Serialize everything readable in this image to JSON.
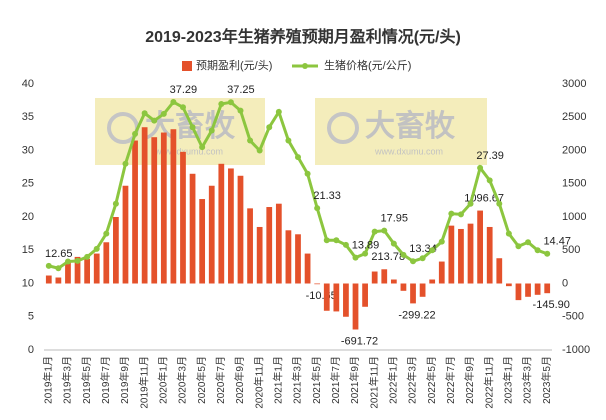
{
  "chart_data": {
    "type": "combo",
    "title": "2019-2023年生猪养殖预期月盈利情况(元/头)",
    "watermark": {
      "text": "大畜牧",
      "url": "www.dxumu.com"
    },
    "legend": "top",
    "grid": false,
    "categories": [
      "2019年1月",
      null,
      "2019年3月",
      null,
      "2019年5月",
      null,
      "2019年7月",
      null,
      "2019年9月",
      null,
      "2019年11月",
      null,
      "2020年1月",
      null,
      "2020年3月",
      null,
      "2020年5月",
      null,
      "2020年7月",
      null,
      "2020年9月",
      null,
      "2020年11月",
      null,
      "2021年1月",
      null,
      "2021年3月",
      null,
      "2021年5月",
      null,
      "2021年7月",
      null,
      "2021年9月",
      null,
      "2021年11月",
      null,
      "2022年1月",
      null,
      "2022年3月",
      null,
      "2022年5月",
      null,
      "2022年7月",
      null,
      "2022年9月",
      null,
      "2022年11月",
      null,
      "2023年1月",
      null,
      "2023年3月",
      null,
      "2023年5月"
    ],
    "ylim": [
      0,
      40
    ],
    "yticks": [
      0,
      5,
      10,
      15,
      20,
      25,
      30,
      35,
      40
    ],
    "y2lim": [
      -1000,
      3000
    ],
    "y2ticks": [
      -1000,
      -500,
      0,
      500,
      1000,
      1500,
      2000,
      2500,
      3000
    ],
    "series": [
      {
        "name": "预期盈利(元/头)",
        "type": "bar",
        "axis": "y2",
        "color": "#e4512b",
        "values": [
          120,
          90,
          320,
          400,
          370,
          450,
          620,
          1000,
          1470,
          2150,
          2350,
          2200,
          2270,
          2320,
          1980,
          1650,
          1270,
          1470,
          1800,
          1730,
          1620,
          1130,
          850,
          1150,
          1200,
          800,
          740,
          450,
          -10.65,
          -410,
          -420,
          -500,
          -691.72,
          -350,
          180,
          213.78,
          60,
          -110,
          -299.22,
          -200,
          60,
          330,
          870,
          820,
          900,
          1096.67,
          850,
          380,
          -40,
          -250,
          -200,
          -170,
          -145.9
        ],
        "value_labels": [
          null,
          null,
          null,
          null,
          null,
          null,
          null,
          null,
          null,
          null,
          null,
          null,
          null,
          null,
          null,
          null,
          null,
          null,
          null,
          null,
          null,
          null,
          null,
          null,
          null,
          null,
          null,
          null,
          "-10.65",
          null,
          null,
          null,
          "-691.72",
          null,
          null,
          "213.78",
          null,
          null,
          "-299.22",
          null,
          null,
          null,
          null,
          null,
          null,
          "1096.67",
          null,
          null,
          null,
          null,
          null,
          null,
          "-145.90"
        ]
      },
      {
        "name": "生猪价格(元/公斤)",
        "type": "line",
        "axis": "y",
        "color": "#8cc63f",
        "values": [
          12.65,
          12.3,
          13.3,
          13.4,
          14,
          15.2,
          17.5,
          22,
          28,
          32.5,
          35.6,
          34.5,
          35.5,
          37.29,
          36.5,
          33.5,
          30.5,
          33,
          37,
          37.25,
          36,
          31.5,
          30,
          33.5,
          35.8,
          31.5,
          29,
          26.5,
          21.33,
          16.5,
          16.5,
          15.8,
          13.89,
          14.5,
          17.8,
          17.95,
          16,
          14.3,
          13.34,
          13.8,
          15,
          16.3,
          20.5,
          20.4,
          22,
          27.39,
          25.5,
          22,
          17.5,
          15.6,
          16.2,
          15,
          14.47
        ],
        "value_labels": [
          "12.65",
          null,
          null,
          null,
          null,
          null,
          null,
          null,
          null,
          null,
          null,
          null,
          null,
          "37.29",
          null,
          null,
          null,
          null,
          null,
          "37.25",
          null,
          null,
          null,
          null,
          null,
          null,
          null,
          null,
          "21.33",
          null,
          null,
          null,
          "13.89",
          null,
          null,
          "17.95",
          null,
          null,
          "13.34",
          null,
          null,
          null,
          null,
          null,
          null,
          "27.39",
          null,
          null,
          null,
          null,
          null,
          null,
          "14.47"
        ]
      }
    ]
  }
}
